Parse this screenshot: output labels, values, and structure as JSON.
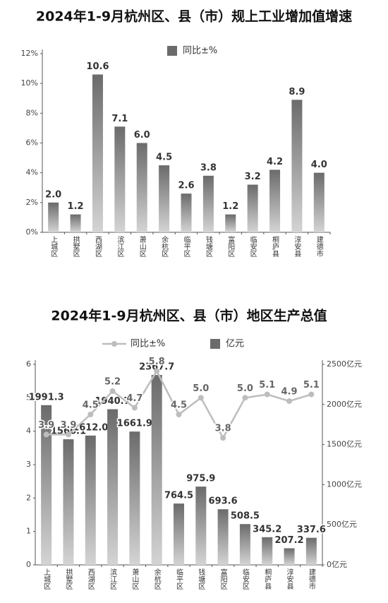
{
  "chart_data": [
    {
      "type": "bar",
      "title": "2024年1-9月杭州区、县（市）规上工业增加值增速",
      "categories": [
        "上城区",
        "拱墅区",
        "西湖区",
        "滨江区",
        "萧山区",
        "余杭区",
        "临平区",
        "钱塘区",
        "富阳区",
        "临安区",
        "桐庐县",
        "淳安县",
        "建德市"
      ],
      "series": [
        {
          "name": "同比±%",
          "type": "bar",
          "color": "#6b6b6b",
          "values": [
            2.0,
            1.2,
            10.6,
            7.1,
            6.0,
            4.5,
            2.6,
            3.8,
            1.2,
            3.2,
            4.2,
            8.9,
            4.0
          ],
          "value_labels": [
            "2.0",
            "1.2",
            "10.6",
            "7.1",
            "6.0",
            "4.5",
            "2.6",
            "3.8",
            "1.2",
            "3.2",
            "4.2",
            "8.9",
            "4.0"
          ]
        }
      ],
      "ylim": [
        0,
        12
      ],
      "yticks": [
        {
          "value": 0,
          "label": "0%"
        },
        {
          "value": 2,
          "label": "2%"
        },
        {
          "value": 4,
          "label": "4%"
        },
        {
          "value": 6,
          "label": "6%"
        },
        {
          "value": 8,
          "label": "8%"
        },
        {
          "value": 10,
          "label": "10%"
        },
        {
          "value": 12,
          "label": "12%"
        }
      ]
    },
    {
      "type": "combo",
      "title": "2024年1-9月杭州区、县（市）地区生产总值",
      "categories": [
        "上城区",
        "拱墅区",
        "西湖区",
        "滨江区",
        "萧山区",
        "余杭区",
        "临平区",
        "钱塘区",
        "富阳区",
        "临安区",
        "桐庐县",
        "淳安县",
        "建德市"
      ],
      "series": [
        {
          "name": "同比±%",
          "type": "line",
          "color": "#bdbdbd",
          "values": [
            3.9,
            3.9,
            4.5,
            5.2,
            4.7,
            5.8,
            4.5,
            5.0,
            3.8,
            5.0,
            5.1,
            4.9,
            5.1
          ],
          "value_labels": [
            "3.9",
            "3.9",
            "4.5",
            "5.2",
            "4.7",
            "5.8",
            "4.5",
            "5.0",
            "3.8",
            "5.0",
            "5.1",
            "4.9",
            "5.1"
          ]
        },
        {
          "name": "亿元",
          "type": "bar",
          "axis": "y2",
          "color": "#6b6b6b",
          "values": [
            1991.3,
            1566.1,
            1612.0,
            1940.7,
            1661.9,
            2367.7,
            764.5,
            975.9,
            693.6,
            508.5,
            345.2,
            207.2,
            337.6
          ],
          "value_labels": [
            "1991.3",
            "1566.1",
            "1612.0",
            "1940.7",
            "1661.9",
            "2367.7",
            "764.5",
            "975.9",
            "693.6",
            "508.5",
            "345.2",
            "207.2",
            "337.6"
          ]
        }
      ],
      "ylim": [
        0,
        6
      ],
      "yticks": [
        0,
        1,
        2,
        3,
        4,
        5,
        6
      ],
      "y2lim": [
        0,
        2500
      ],
      "y2ticks": [
        {
          "value": 0,
          "label": "0亿元"
        },
        {
          "value": 500,
          "label": "500亿元"
        },
        {
          "value": 1000,
          "label": "1000亿元"
        },
        {
          "value": 1500,
          "label": "1500亿元"
        },
        {
          "value": 2000,
          "label": "2000亿元"
        },
        {
          "value": 2500,
          "label": "2500亿元"
        }
      ]
    }
  ]
}
